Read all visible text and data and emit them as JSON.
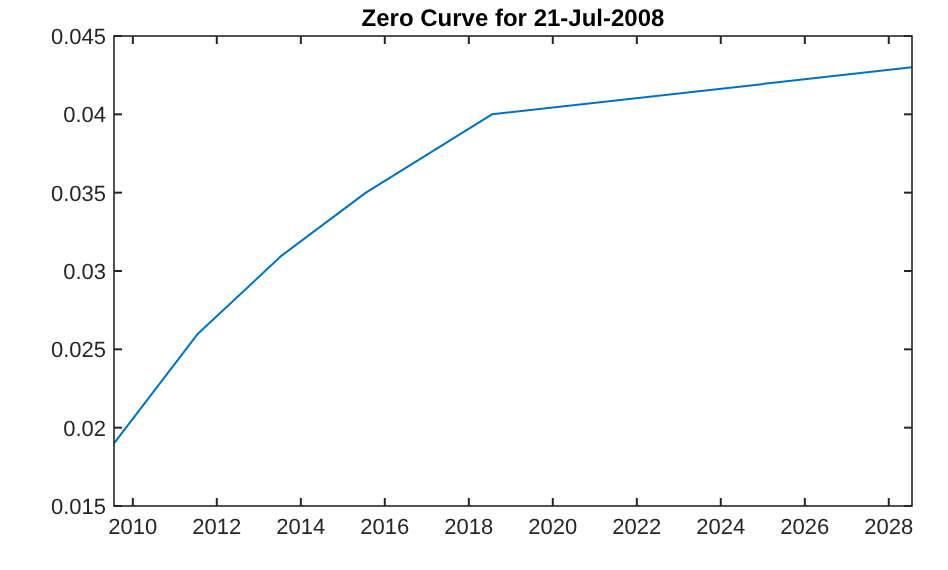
{
  "chart_data": {
    "type": "line",
    "title": "Zero Curve for 21-Jul-2008",
    "x": [
      "2009-07-21",
      "2011-07-21",
      "2013-07-21",
      "2015-07-21",
      "2018-07-21",
      "2028-07-21"
    ],
    "series": [
      {
        "color": "#0072bd",
        "values": [
          0.019,
          0.026,
          0.031,
          0.035,
          0.04,
          0.043
        ]
      }
    ],
    "xlim": [
      "2009-07-21",
      "2028-07-21"
    ],
    "xticks": [
      {
        "value": "2010",
        "label": "2010"
      },
      {
        "value": "2012",
        "label": "2012"
      },
      {
        "value": "2014",
        "label": "2014"
      },
      {
        "value": "2016",
        "label": "2016"
      },
      {
        "value": "2018",
        "label": "2018"
      },
      {
        "value": "2020",
        "label": "2020"
      },
      {
        "value": "2022",
        "label": "2022"
      },
      {
        "value": "2024",
        "label": "2024"
      },
      {
        "value": "2026",
        "label": "2026"
      },
      {
        "value": "2028",
        "label": "2028"
      }
    ],
    "ylim": [
      0.015,
      0.045
    ],
    "yticks": [
      0.015,
      0.02,
      0.025,
      0.03,
      0.035,
      0.04,
      0.045
    ],
    "grid": false,
    "marker": "none",
    "line_style": "solid"
  }
}
